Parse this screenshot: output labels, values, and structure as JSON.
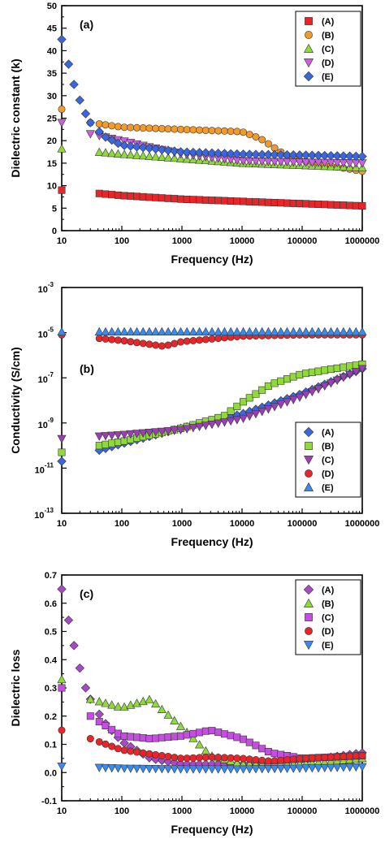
{
  "chart_data": [
    {
      "type": "scatter",
      "panel": "(a)",
      "xlabel": "Frequency (Hz)",
      "ylabel": "Dielectric constant (k)",
      "xscale": "log",
      "yscale": "linear",
      "xlim": [
        10,
        1000000
      ],
      "ylim": [
        0,
        50
      ],
      "xticks": [
        10,
        100,
        1000,
        10000,
        100000,
        1000000
      ],
      "xtick_labels": [
        "10",
        "100",
        "1000",
        "10000",
        "100000",
        "1000000"
      ],
      "yticks": [
        0,
        5,
        10,
        15,
        20,
        25,
        30,
        35,
        40,
        45,
        50
      ],
      "ytick_labels": [
        "0",
        "5",
        "10",
        "15",
        "20",
        "25",
        "30",
        "35",
        "40",
        "45",
        "50"
      ],
      "legend_position": "top-right",
      "series": [
        {
          "name": "(A)",
          "marker": "square",
          "color": "#e8262a",
          "x": [
            10,
            100,
            1000,
            10000,
            100000,
            1000000
          ],
          "y": [
            9.0,
            7.8,
            7.0,
            6.5,
            6.0,
            5.5
          ]
        },
        {
          "name": "(B)",
          "marker": "circle",
          "color": "#f39a2b",
          "x": [
            10,
            30,
            100,
            1000,
            10000,
            20000,
            50000,
            100000,
            1000000
          ],
          "y": [
            27.0,
            24.0,
            23.0,
            22.5,
            22.0,
            20.5,
            17.0,
            15.5,
            13.2
          ]
        },
        {
          "name": "(C)",
          "marker": "triangle-up",
          "color": "#8fd93a",
          "x": [
            10,
            100,
            1000,
            10000,
            100000,
            1000000
          ],
          "y": [
            18.2,
            17.0,
            16.0,
            15.0,
            14.5,
            14.0
          ]
        },
        {
          "name": "(D)",
          "marker": "triangle-down",
          "color": "#cc5fe0",
          "x": [
            10,
            30,
            100,
            1000,
            10000,
            100000,
            1000000
          ],
          "y": [
            24.0,
            21.5,
            20.0,
            17.0,
            15.5,
            15.2,
            15.0
          ]
        },
        {
          "name": "(E)",
          "marker": "diamond",
          "color": "#3a66e0",
          "x": [
            10,
            13,
            16,
            20,
            25,
            30,
            50,
            100,
            1000,
            10000,
            100000,
            1000000
          ],
          "y": [
            42.5,
            37.0,
            32.5,
            29.0,
            26.0,
            24.0,
            21.0,
            19.0,
            17.5,
            17.0,
            16.8,
            16.5
          ]
        }
      ]
    },
    {
      "type": "scatter",
      "panel": "(b)",
      "xlabel": "Frequency (Hz)",
      "ylabel": "Conductivity (S/cm)",
      "xscale": "log",
      "yscale": "log",
      "xlim": [
        10,
        1000000
      ],
      "ylim": [
        1e-13,
        0.001
      ],
      "xticks": [
        10,
        100,
        1000,
        10000,
        100000,
        1000000
      ],
      "xtick_labels": [
        "10",
        "100",
        "1000",
        "10000",
        "100000",
        "1000000"
      ],
      "yticks": [
        1e-13,
        1e-11,
        1e-09,
        1e-07,
        1e-05,
        0.001
      ],
      "ytick_base": "10",
      "ytick_exponents": [
        "-13",
        "-11",
        "-9",
        "-7",
        "-5",
        "-3"
      ],
      "legend_position": "bottom-right",
      "series": [
        {
          "name": "(A)",
          "marker": "diamond",
          "color": "#3a66e0",
          "x": [
            10,
            100,
            1000,
            10000,
            100000,
            1000000
          ],
          "y": [
            2e-11,
            1.2e-10,
            6e-10,
            2.5e-09,
            2e-08,
            2.5e-07
          ]
        },
        {
          "name": "(B)",
          "marker": "square",
          "color": "#8fd93a",
          "x": [
            10,
            100,
            1000,
            5000,
            10000,
            30000,
            100000,
            1000000
          ],
          "y": [
            5e-11,
            1.5e-10,
            6e-10,
            2e-09,
            8e-09,
            5e-08,
            1.5e-07,
            4e-07
          ]
        },
        {
          "name": "(C)",
          "marker": "triangle-down",
          "color": "#9a3fb4",
          "x": [
            10,
            100,
            1000,
            10000,
            100000,
            1000000
          ],
          "y": [
            2e-10,
            3e-10,
            5e-10,
            1.5e-09,
            1.5e-08,
            2.5e-07
          ]
        },
        {
          "name": "(D)",
          "marker": "circle",
          "color": "#e8262a",
          "x": [
            10,
            100,
            500,
            1000,
            10000,
            100000,
            1000000
          ],
          "y": [
            8e-06,
            4.5e-06,
            2.5e-06,
            4e-06,
            7e-06,
            8e-06,
            8e-06
          ]
        },
        {
          "name": "(E)",
          "marker": "triangle-up",
          "color": "#3a8bf0",
          "x": [
            10,
            100,
            1000,
            10000,
            100000,
            1000000
          ],
          "y": [
            1.1e-05,
            1.1e-05,
            1.1e-05,
            1.1e-05,
            1.1e-05,
            1.1e-05
          ]
        }
      ]
    },
    {
      "type": "scatter",
      "panel": "(c)",
      "xlabel": "Frequency (Hz)",
      "ylabel": "Dielectric loss",
      "xscale": "log",
      "yscale": "linear",
      "xlim": [
        10,
        1000000
      ],
      "ylim": [
        -0.1,
        0.7
      ],
      "xticks": [
        10,
        100,
        1000,
        10000,
        100000,
        1000000
      ],
      "xtick_labels": [
        "10",
        "100",
        "1000",
        "10000",
        "100000",
        "1000000"
      ],
      "yticks": [
        -0.1,
        0.0,
        0.1,
        0.2,
        0.3,
        0.4,
        0.5,
        0.6,
        0.7
      ],
      "ytick_labels": [
        "-0.1",
        "0.0",
        "0.1",
        "0.2",
        "0.3",
        "0.4",
        "0.5",
        "0.6",
        "0.7"
      ],
      "legend_position": "top-right",
      "series": [
        {
          "name": "(A)",
          "marker": "diamond",
          "color": "#a64ac9",
          "x": [
            10,
            13,
            16,
            20,
            25,
            30,
            50,
            100,
            300,
            1000,
            10000,
            100000,
            1000000
          ],
          "y": [
            0.65,
            0.54,
            0.45,
            0.37,
            0.3,
            0.26,
            0.18,
            0.11,
            0.05,
            0.03,
            0.03,
            0.04,
            0.07
          ]
        },
        {
          "name": "(B)",
          "marker": "triangle-up",
          "color": "#8fd93a",
          "x": [
            10,
            30,
            100,
            300,
            1000,
            3000,
            10000,
            100000,
            1000000
          ],
          "y": [
            0.33,
            0.26,
            0.23,
            0.26,
            0.16,
            0.06,
            0.03,
            0.03,
            0.05
          ]
        },
        {
          "name": "(C)",
          "marker": "square",
          "color": "#c44ee0",
          "x": [
            10,
            30,
            100,
            300,
            1000,
            3000,
            10000,
            30000,
            100000,
            1000000
          ],
          "y": [
            0.3,
            0.2,
            0.13,
            0.12,
            0.13,
            0.15,
            0.12,
            0.07,
            0.05,
            0.06
          ]
        },
        {
          "name": "(D)",
          "marker": "circle",
          "color": "#e8262a",
          "x": [
            10,
            30,
            100,
            1000,
            3000,
            10000,
            30000,
            100000,
            1000000
          ],
          "y": [
            0.15,
            0.12,
            0.08,
            0.05,
            0.055,
            0.05,
            0.04,
            0.05,
            0.06
          ]
        },
        {
          "name": "(E)",
          "marker": "triangle-down",
          "color": "#3a8bf0",
          "x": [
            10,
            100,
            1000,
            10000,
            100000,
            1000000
          ],
          "y": [
            0.022,
            0.015,
            0.012,
            0.012,
            0.015,
            0.02
          ]
        }
      ]
    }
  ]
}
